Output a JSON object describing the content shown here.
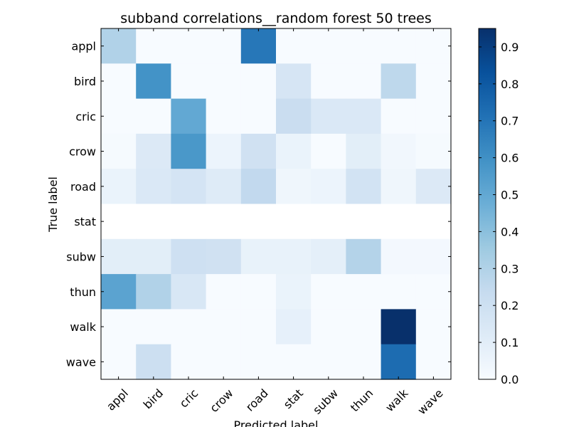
{
  "chart_data": {
    "type": "heatmap",
    "title": "subband correlations__random forest 50 trees",
    "xlabel": "Predicted label",
    "ylabel": "True label",
    "x_categories": [
      "appl",
      "bird",
      "cric",
      "crow",
      "road",
      "stat",
      "subw",
      "thun",
      "walk",
      "wave"
    ],
    "y_categories": [
      "appl",
      "bird",
      "cric",
      "crow",
      "road",
      "stat",
      "subw",
      "thun",
      "walk",
      "wave"
    ],
    "values": [
      [
        0.3,
        0.0,
        0.0,
        0.0,
        0.69,
        0.0,
        0.0,
        0.0,
        0.0,
        0.0
      ],
      [
        0.0,
        0.59,
        0.0,
        0.0,
        0.0,
        0.16,
        0.0,
        0.0,
        0.26,
        0.0
      ],
      [
        0.0,
        0.0,
        0.5,
        0.0,
        0.0,
        0.22,
        0.14,
        0.14,
        0.0,
        0.0
      ],
      [
        0.01,
        0.13,
        0.57,
        0.05,
        0.19,
        0.06,
        0.0,
        0.1,
        0.03,
        0.01
      ],
      [
        0.06,
        0.14,
        0.17,
        0.12,
        0.25,
        0.04,
        0.05,
        0.18,
        0.04,
        0.13
      ],
      [
        null,
        null,
        null,
        null,
        null,
        null,
        null,
        null,
        null,
        null
      ],
      [
        0.1,
        0.1,
        0.2,
        0.19,
        0.07,
        0.07,
        0.09,
        0.29,
        0.02,
        0.02
      ],
      [
        0.52,
        0.3,
        0.15,
        0.0,
        0.0,
        0.06,
        0.0,
        0.0,
        0.0,
        0.0
      ],
      [
        0.0,
        0.0,
        0.0,
        0.0,
        0.0,
        0.08,
        0.0,
        0.0,
        0.95,
        0.0
      ],
      [
        0.0,
        0.21,
        0.0,
        0.0,
        0.0,
        0.0,
        0.0,
        0.0,
        0.73,
        0.0
      ]
    ],
    "zlim": [
      0,
      0.95
    ],
    "colorbar": {
      "ticks": [
        0.0,
        0.1,
        0.2,
        0.3,
        0.4,
        0.5,
        0.6,
        0.7,
        0.8,
        0.9
      ],
      "tick_labels": [
        "0.0",
        "0.1",
        "0.2",
        "0.3",
        "0.4",
        "0.5",
        "0.6",
        "0.7",
        "0.8",
        "0.9"
      ]
    },
    "colormap": "Blues",
    "grid": false
  }
}
